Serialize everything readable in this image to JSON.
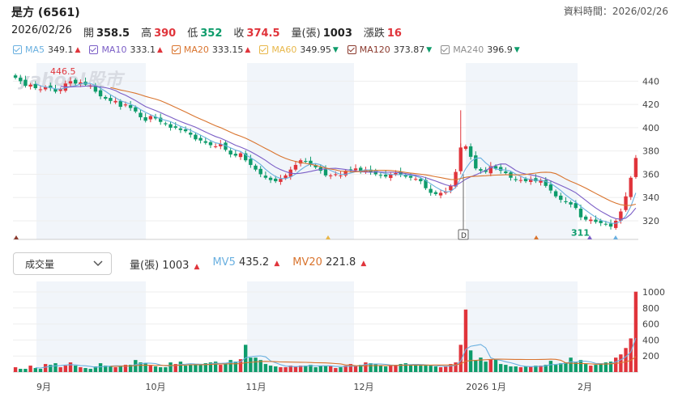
{
  "header": {
    "title": "是方 (6561)",
    "asof_label": "資料時間：2026/02/26"
  },
  "quote": {
    "date": "2026/02/26",
    "open_label": "開",
    "open": "358.5",
    "high_label": "高",
    "high": "390",
    "low_label": "低",
    "low": "352",
    "close_label": "收",
    "close": "374.5",
    "vol_label": "量(張)",
    "vol": "1003",
    "chg_label": "漲跌",
    "chg": "16"
  },
  "ma_legend": [
    {
      "name": "MA5",
      "value": "349.1",
      "dir": "up",
      "color": "#6ab0e0"
    },
    {
      "name": "MA10",
      "value": "333.1",
      "dir": "up",
      "color": "#7b5ec6"
    },
    {
      "name": "MA20",
      "value": "333.15",
      "dir": "up",
      "color": "#d9742e"
    },
    {
      "name": "MA60",
      "value": "349.95",
      "dir": "down",
      "color": "#e8b74a"
    },
    {
      "name": "MA120",
      "value": "373.87",
      "dir": "down",
      "color": "#8b3a2e"
    },
    {
      "name": "MA240",
      "value": "396.9",
      "dir": "down",
      "color": "#8e8e8e"
    }
  ],
  "watermark": "yahoo!股市",
  "volume_panel": {
    "selector_label": "成交量",
    "vol_label": "量(張)",
    "vol": "1003",
    "mv5_label": "MV5",
    "mv5": "435.2",
    "mv20_label": "MV20",
    "mv20": "221.8",
    "mv5_color": "#6ab0e0",
    "mv20_color": "#d9742e"
  },
  "chart_data": [
    {
      "type": "candlestick",
      "y_ticks": [
        320,
        340,
        360,
        380,
        400,
        420,
        440
      ],
      "ylim": [
        304,
        450
      ],
      "annotations": [
        {
          "text": "446.5",
          "kind": "high"
        },
        {
          "text": "311",
          "kind": "low"
        },
        {
          "text": "D",
          "kind": "marker"
        }
      ],
      "up_color": "#e0343b",
      "down_color": "#0e9c6b",
      "close": [
        443,
        440,
        436,
        437,
        434,
        433,
        435,
        434,
        431,
        433,
        438,
        440,
        438,
        439,
        437,
        436,
        431,
        427,
        425,
        423,
        423,
        418,
        420,
        417,
        414,
        409,
        406,
        410,
        408,
        405,
        403,
        400,
        400,
        398,
        397,
        394,
        390,
        389,
        387,
        385,
        384,
        386,
        381,
        377,
        376,
        378,
        372,
        368,
        364,
        360,
        357,
        355,
        354,
        356,
        359,
        364,
        368,
        372,
        371,
        369,
        366,
        363,
        359,
        359,
        360,
        359,
        363,
        364,
        365,
        363,
        364,
        362,
        360,
        359,
        358,
        360,
        361,
        360,
        358,
        357,
        356,
        354,
        348,
        344,
        343,
        344,
        345,
        350,
        362,
        383,
        384,
        375,
        365,
        363,
        362,
        367,
        365,
        363,
        361,
        357,
        355,
        355,
        354,
        356,
        354,
        355,
        350,
        346,
        341,
        338,
        336,
        334,
        331,
        323,
        321,
        321,
        319,
        318,
        317,
        315,
        320,
        328,
        341,
        357,
        374
      ],
      "x_labels": [
        "9月",
        "10月",
        "11月",
        "12月",
        "2026 1月",
        "2月"
      ]
    },
    {
      "type": "bar",
      "name": "成交量",
      "y_ticks": [
        200,
        400,
        600,
        800,
        1000
      ],
      "ylim": [
        0,
        1050
      ],
      "values": [
        60,
        40,
        40,
        80,
        50,
        40,
        100,
        90,
        110,
        60,
        80,
        120,
        80,
        60,
        50,
        40,
        70,
        110,
        80,
        70,
        60,
        70,
        90,
        90,
        150,
        120,
        110,
        80,
        70,
        60,
        60,
        120,
        100,
        130,
        80,
        90,
        100,
        90,
        110,
        120,
        130,
        90,
        110,
        150,
        130,
        160,
        340,
        180,
        180,
        150,
        100,
        80,
        70,
        60,
        60,
        80,
        70,
        80,
        80,
        90,
        60,
        80,
        80,
        80,
        50,
        60,
        80,
        100,
        80,
        90,
        120,
        110,
        100,
        80,
        70,
        80,
        90,
        100,
        110,
        90,
        90,
        80,
        80,
        80,
        70,
        60,
        70,
        100,
        120,
        340,
        780,
        270,
        150,
        180,
        130,
        160,
        160,
        100,
        90,
        70,
        70,
        60,
        70,
        70,
        80,
        80,
        90,
        140,
        90,
        110,
        120,
        180,
        120,
        150,
        100,
        80,
        90,
        110,
        120,
        130,
        180,
        220,
        300,
        420,
        1003
      ]
    }
  ]
}
